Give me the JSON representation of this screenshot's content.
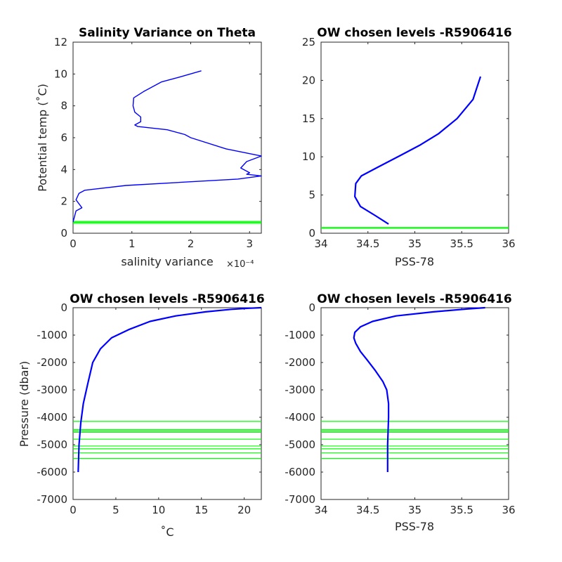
{
  "figure": {
    "background": "#ffffff"
  },
  "colors": {
    "profile": "#0000ff",
    "level": "#00ff00",
    "axis": "#262626"
  },
  "panels": [
    {
      "id": "tl",
      "title": "Salinity Variance on Theta",
      "xlabel": "salinity variance",
      "xlabel_exponent": "×10⁻⁴",
      "ylabel": "Potential temp (˚C)",
      "xlim": [
        0,
        3.2
      ],
      "ylim": [
        0,
        12
      ],
      "xticks": [
        0,
        1,
        2,
        3
      ],
      "xtick_labels": [
        "0",
        "1",
        "2",
        "3"
      ],
      "yticks": [
        0,
        2,
        4,
        6,
        8,
        10,
        12
      ],
      "ytick_labels": [
        "0",
        "2",
        "4",
        "6",
        "8",
        "10",
        "12"
      ]
    },
    {
      "id": "tr",
      "title": "OW chosen levels -R5906416",
      "xlabel": "PSS-78",
      "ylabel": "",
      "xlim": [
        34,
        36
      ],
      "ylim": [
        0,
        25
      ],
      "xticks": [
        34,
        34.5,
        35,
        35.5,
        36
      ],
      "xtick_labels": [
        "34",
        "34.5",
        "35",
        "35.5",
        "36"
      ],
      "yticks": [
        0,
        5,
        10,
        15,
        20,
        25
      ],
      "ytick_labels": [
        "0",
        "5",
        "10",
        "15",
        "20",
        "25"
      ]
    },
    {
      "id": "bl",
      "title": "OW chosen levels -R5906416",
      "xlabel": "˚C",
      "ylabel": "Pressure (dbar)",
      "xlim": [
        0,
        22
      ],
      "ylim": [
        -7000,
        0
      ],
      "xticks": [
        0,
        5,
        10,
        15,
        20
      ],
      "xtick_labels": [
        "0",
        "5",
        "10",
        "15",
        "20"
      ],
      "yticks": [
        -7000,
        -6000,
        -5000,
        -4000,
        -3000,
        -2000,
        -1000,
        0
      ],
      "ytick_labels": [
        "-7000",
        "-6000",
        "-5000",
        "-4000",
        "-3000",
        "-2000",
        "-1000",
        "0"
      ]
    },
    {
      "id": "br",
      "title": "OW chosen levels -R5906416",
      "xlabel": "PSS-78",
      "ylabel": "",
      "xlim": [
        34,
        36
      ],
      "ylim": [
        -7000,
        0
      ],
      "xticks": [
        34,
        34.5,
        35,
        35.5,
        36
      ],
      "xtick_labels": [
        "34",
        "34.5",
        "35",
        "35.5",
        "36"
      ],
      "yticks": [
        -7000,
        -6000,
        -5000,
        -4000,
        -3000,
        -2000,
        -1000,
        0
      ],
      "ytick_labels": [
        "-7000",
        "-6000",
        "-5000",
        "-4000",
        "-3000",
        "-2000",
        "-1000",
        "0"
      ]
    }
  ],
  "chart_data": [
    {
      "type": "line",
      "panel": "tl",
      "title": "Salinity Variance on Theta",
      "xlabel": "salinity variance (×10⁻⁴)",
      "ylabel": "Potential temp (˚C)",
      "xlim": [
        0,
        3.2
      ],
      "ylim": [
        0,
        12
      ],
      "series": [
        {
          "x": [
            2.18,
            1.8,
            1.5,
            1.2,
            1.03,
            1.02,
            1.05,
            1.15,
            1.15,
            1.05,
            1.1,
            1.6,
            1.9,
            2.0,
            2.6,
            3.2,
            2.95,
            2.85,
            3.0,
            2.95,
            3.2,
            2.8,
            0.9,
            0.2,
            0.1,
            0.05,
            0.15,
            0.05,
            0.0
          ],
          "y": [
            10.2,
            9.8,
            9.5,
            8.9,
            8.5,
            8.0,
            7.6,
            7.3,
            7.0,
            6.8,
            6.7,
            6.5,
            6.2,
            6.0,
            5.3,
            4.85,
            4.5,
            4.1,
            3.8,
            3.7,
            3.6,
            3.4,
            3.0,
            2.7,
            2.5,
            2.1,
            1.6,
            1.4,
            0.7
          ]
        }
      ],
      "reference_levels_y": [
        0.62,
        0.68,
        0.74
      ]
    },
    {
      "type": "line",
      "panel": "tr",
      "title": "OW chosen levels -R5906416",
      "xlabel": "PSS-78",
      "xlim": [
        34,
        36
      ],
      "ylim": [
        0,
        25
      ],
      "series": [
        {
          "x": [
            34.72,
            34.58,
            34.42,
            34.36,
            34.37,
            34.43,
            34.6,
            34.85,
            35.05,
            35.25,
            35.45,
            35.62,
            35.7
          ],
          "y": [
            1.2,
            2.3,
            3.5,
            4.8,
            6.5,
            7.5,
            8.6,
            10.2,
            11.5,
            13.0,
            15.0,
            17.5,
            20.5
          ]
        }
      ],
      "reference_levels_y": [
        0.65,
        0.75
      ]
    },
    {
      "type": "line",
      "panel": "bl",
      "title": "OW chosen levels -R5906416",
      "xlabel": "˚C",
      "ylabel": "Pressure (dbar)",
      "xlim": [
        0,
        22
      ],
      "ylim": [
        -7000,
        0
      ],
      "series": [
        {
          "x": [
            0.6,
            0.7,
            0.9,
            1.2,
            1.7,
            2.3,
            3.2,
            4.5,
            6.5,
            9.0,
            12.0,
            15.5,
            18.5,
            20.5,
            22.0
          ],
          "y": [
            -6000,
            -5000,
            -4200,
            -3500,
            -2800,
            -2000,
            -1500,
            -1100,
            -800,
            -500,
            -300,
            -150,
            -60,
            -20,
            0
          ]
        }
      ],
      "reference_levels_y": [
        -4150,
        -4450,
        -4500,
        -4550,
        -4800,
        -5050,
        -5150,
        -5300,
        -5500
      ]
    },
    {
      "type": "line",
      "panel": "br",
      "title": "OW chosen levels -R5906416",
      "xlabel": "PSS-78",
      "xlim": [
        34,
        36
      ],
      "ylim": [
        -7000,
        0
      ],
      "series": [
        {
          "x": [
            34.71,
            34.71,
            34.72,
            34.72,
            34.7,
            34.66,
            34.58,
            34.49,
            34.42,
            34.37,
            34.35,
            34.36,
            34.42,
            34.55,
            34.8,
            35.2,
            35.55,
            35.75
          ],
          "y": [
            -6000,
            -5000,
            -4000,
            -3500,
            -3000,
            -2700,
            -2300,
            -1900,
            -1600,
            -1300,
            -1100,
            -900,
            -700,
            -500,
            -300,
            -150,
            -50,
            0
          ]
        }
      ],
      "reference_levels_y": [
        -4150,
        -4450,
        -4500,
        -4550,
        -4800,
        -5050,
        -5150,
        -5300,
        -5500
      ]
    }
  ]
}
